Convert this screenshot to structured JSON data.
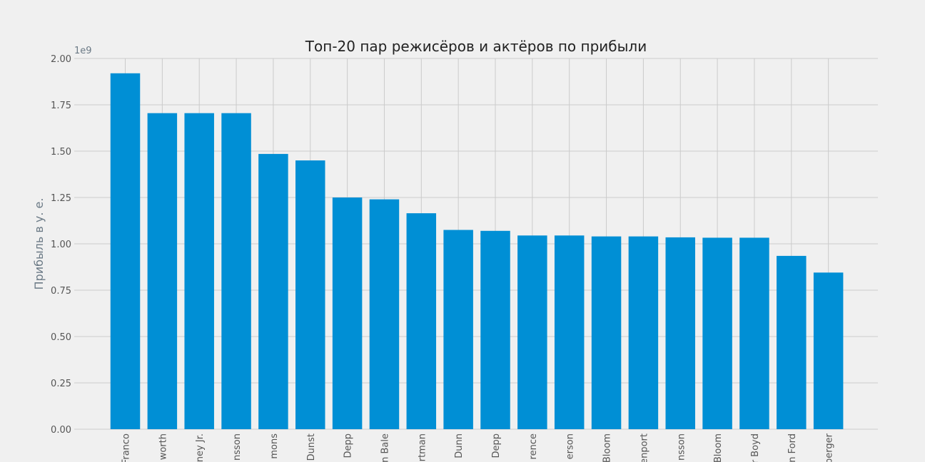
{
  "chart_data": {
    "type": "bar",
    "title": "Топ-20 пар режисёров и актёров по прибыли",
    "xlabel": "",
    "ylabel": "Прибыль в у. е.",
    "y_scale_label": "1e9",
    "ylim": [
      0,
      2.0
    ],
    "yticks": [
      "0.00",
      "0.25",
      "0.50",
      "0.75",
      "1.00",
      "1.25",
      "1.50",
      "1.75",
      "2.00"
    ],
    "categories": [
      "Franco",
      "worth",
      "ney Jr.",
      "nsson",
      "mons",
      "Dunst",
      "Depp",
      "n Bale",
      "rtman",
      "Dunn",
      "Depp",
      "rence",
      "erson",
      "Bloom",
      "enport",
      "nsson",
      "Bloom",
      "r Boyd",
      "n Ford",
      "berger"
    ],
    "values": [
      1.92,
      1.705,
      1.705,
      1.705,
      1.485,
      1.45,
      1.25,
      1.24,
      1.165,
      1.075,
      1.07,
      1.045,
      1.045,
      1.04,
      1.04,
      1.035,
      1.033,
      1.033,
      0.935,
      0.845
    ],
    "grid": true,
    "colors": {
      "bar": "#008fd5",
      "background": "#f0f0f0",
      "grid": "#cbcbcb"
    }
  }
}
